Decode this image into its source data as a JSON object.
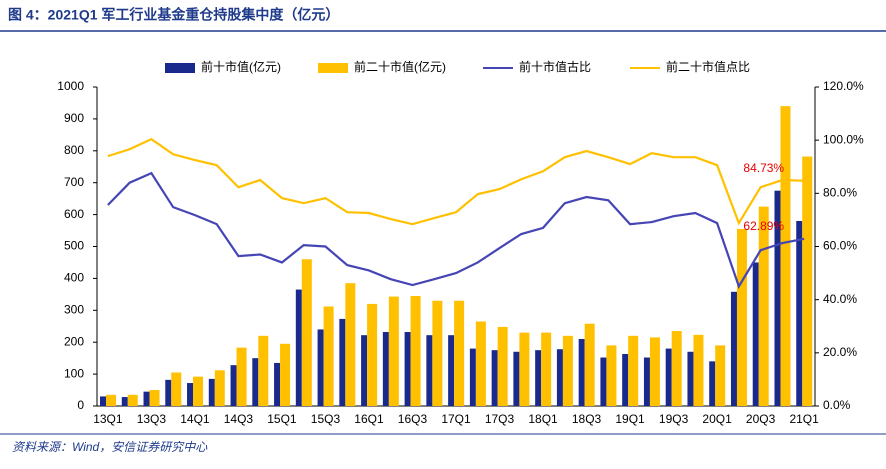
{
  "chart_data": {
    "type": "bar_line",
    "title": "图 4：2021Q1 军工行业基金重仓持股集中度（亿元）",
    "source": "资料来源：Wind，安信证券研究中心",
    "categories": [
      "13Q1",
      null,
      "13Q3",
      null,
      "14Q1",
      null,
      "14Q3",
      null,
      "15Q1",
      null,
      "15Q3",
      null,
      "16Q1",
      null,
      "16Q3",
      null,
      "17Q1",
      null,
      "17Q3",
      null,
      "18Q1",
      null,
      "18Q3",
      null,
      "19Q1",
      null,
      "19Q3",
      null,
      "20Q1",
      null,
      "20Q3",
      null,
      "21Q1"
    ],
    "series": [
      {
        "name": "前十市值(亿元)",
        "type": "bar",
        "color": "#1a2a8c",
        "values": [
          30,
          28,
          45,
          82,
          72,
          85,
          128,
          150,
          135,
          365,
          240,
          273,
          222,
          232,
          232,
          222,
          222,
          180,
          175,
          170,
          175,
          178,
          210,
          152,
          163,
          152,
          180,
          170,
          140,
          358,
          450,
          675,
          580
        ]
      },
      {
        "name": "前二十市值(亿元)",
        "type": "bar",
        "color": "#ffc000",
        "values": [
          35,
          35,
          50,
          105,
          92,
          112,
          183,
          220,
          195,
          460,
          312,
          385,
          320,
          343,
          345,
          330,
          330,
          265,
          248,
          230,
          230,
          220,
          258,
          190,
          220,
          215,
          235,
          223,
          190,
          555,
          625,
          940,
          782
        ]
      },
      {
        "name": "前十市值古比",
        "type": "line",
        "axis": "y2",
        "color": "#4545b5",
        "values": [
          75.6,
          84,
          87.6,
          74.8,
          71.8,
          68.4,
          56.4,
          57,
          54,
          60.5,
          60,
          53,
          51,
          47.7,
          45.5,
          47.7,
          50,
          54,
          59.4,
          64.7,
          67,
          76.3,
          78.6,
          77.4,
          68.4,
          69.2,
          71.4,
          72.6,
          68.8,
          45,
          58.6,
          61.3,
          62.89
        ],
        "value_labels": [
          null,
          null,
          null,
          null,
          null,
          null,
          null,
          null,
          null,
          null,
          null,
          null,
          null,
          null,
          null,
          null,
          null,
          null,
          null,
          null,
          null,
          null,
          null,
          null,
          null,
          null,
          null,
          null,
          null,
          null,
          null,
          null,
          "62.89%"
        ]
      },
      {
        "name": "前二十市值点比",
        "type": "line",
        "axis": "y2",
        "color": "#ffc000",
        "values": [
          94,
          96.6,
          100.4,
          94.7,
          92.5,
          90.6,
          82.3,
          85,
          78.2,
          76.3,
          78.2,
          72.9,
          72.6,
          70.3,
          68.4,
          70.7,
          72.9,
          79.7,
          81.6,
          85.3,
          88.3,
          93.6,
          95.9,
          93.6,
          91,
          95.1,
          93.6,
          93.6,
          90.6,
          68.8,
          82.3,
          85,
          84.73
        ],
        "value_labels": [
          null,
          null,
          null,
          null,
          null,
          null,
          null,
          null,
          null,
          null,
          null,
          null,
          null,
          null,
          null,
          null,
          null,
          null,
          null,
          null,
          null,
          null,
          null,
          null,
          null,
          null,
          null,
          null,
          null,
          null,
          null,
          null,
          "84.73%"
        ]
      }
    ],
    "value_label_color": "#e60000",
    "ylim": [
      0,
      1000
    ],
    "yticks": [
      0,
      100,
      200,
      300,
      400,
      500,
      600,
      700,
      800,
      900,
      1000
    ],
    "y2lim": [
      0,
      120
    ],
    "y2ticks": [
      {
        "value": 0,
        "label": "0.0%"
      },
      {
        "value": 20,
        "label": "20.0%"
      },
      {
        "value": 40,
        "label": "40.0%"
      },
      {
        "value": 60,
        "label": "60.0%"
      },
      {
        "value": 80,
        "label": "80.0%"
      },
      {
        "value": 100,
        "label": "100.0%"
      },
      {
        "value": 120,
        "label": "120.0%"
      }
    ],
    "legend": "top",
    "grid": false
  }
}
